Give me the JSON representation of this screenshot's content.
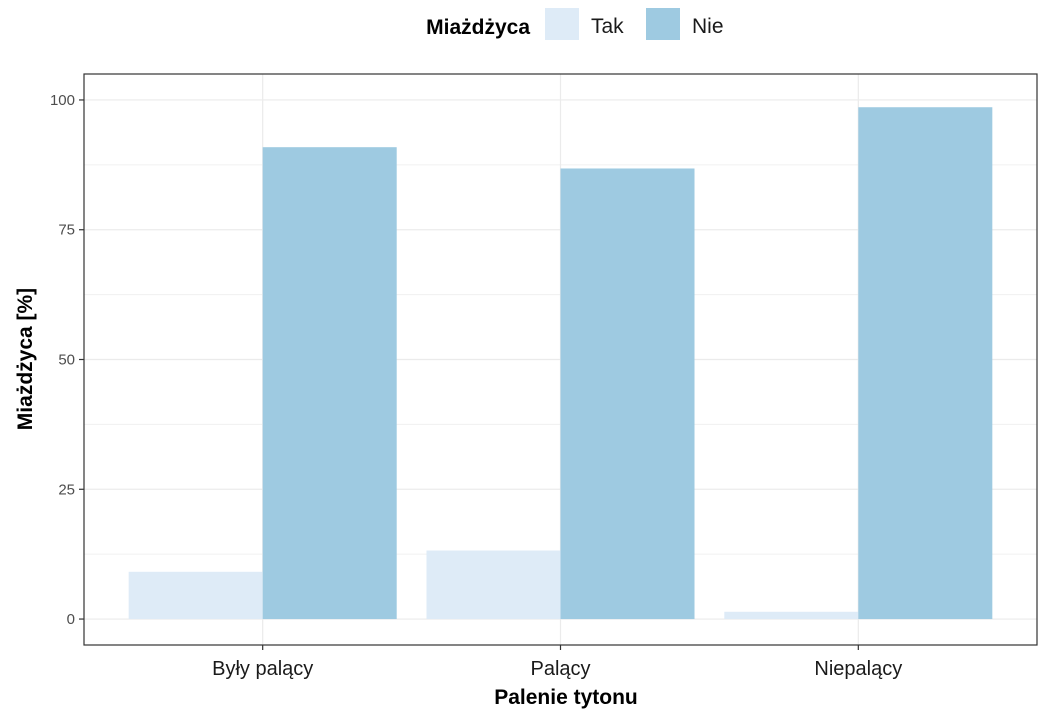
{
  "chart_data": {
    "type": "bar",
    "categories": [
      "Były palący",
      "Palący",
      "Niepalący"
    ],
    "series": [
      {
        "name": "Tak",
        "values": [
          9.1,
          13.2,
          1.4
        ],
        "color": "#deebf7"
      },
      {
        "name": "Nie",
        "values": [
          90.9,
          86.8,
          98.6
        ],
        "color": "#9ecae1"
      }
    ],
    "xlabel": "Palenie tytonu",
    "ylabel": "Miażdżyca [%]",
    "ylim": [
      -5,
      105
    ],
    "yticks": [
      0,
      25,
      50,
      75,
      100
    ],
    "grid": true,
    "legend": {
      "title": "Miażdżyca",
      "position": "top"
    }
  }
}
